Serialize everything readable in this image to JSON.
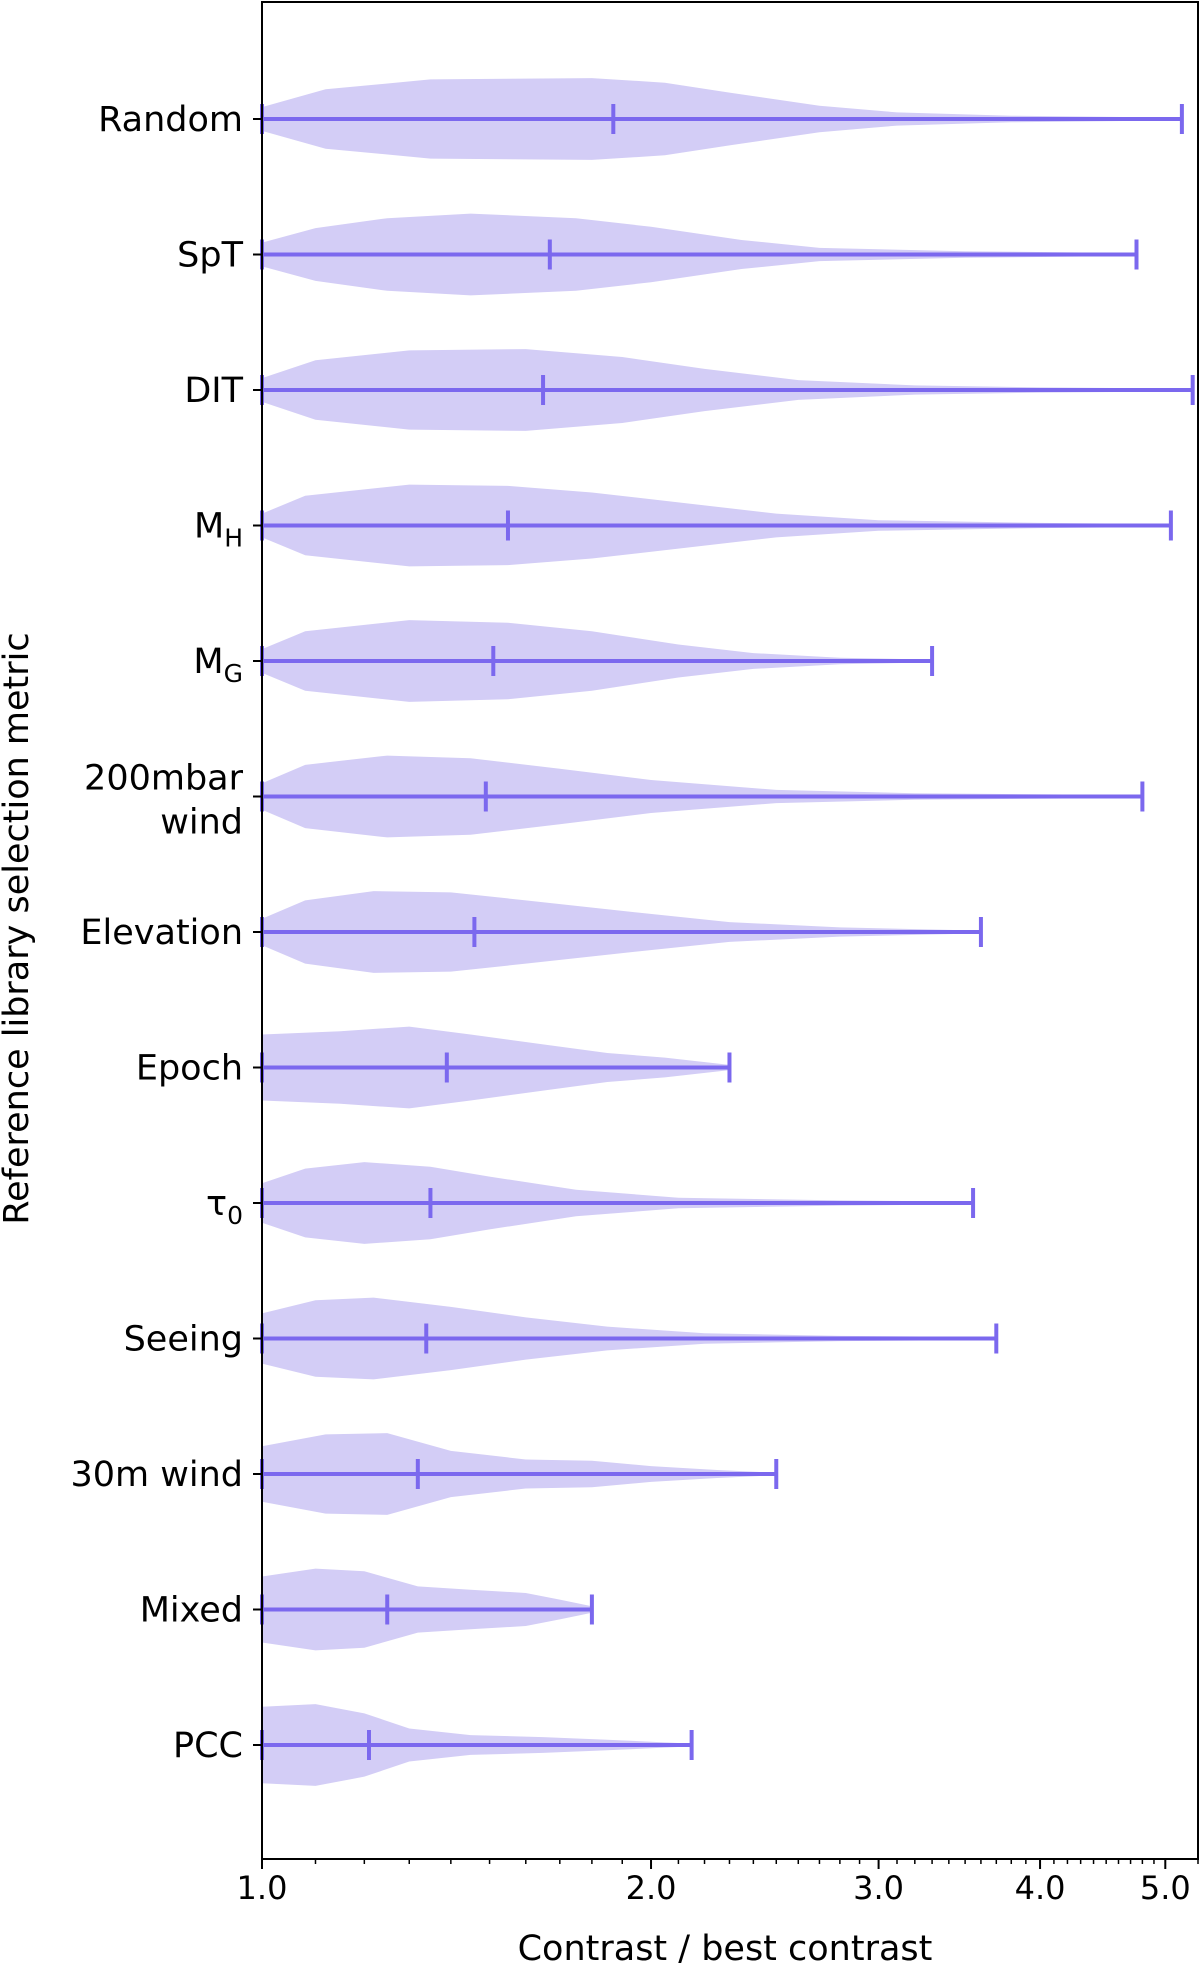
{
  "chart_data": {
    "type": "violin",
    "orientation": "horizontal",
    "xscale": "log",
    "xlabel": "Contrast / best contrast",
    "ylabel": "Reference library selection metric",
    "xlim": [
      1.0,
      5.3
    ],
    "xticks": [
      {
        "value": 1.0,
        "label": "1.0"
      },
      {
        "value": 2.0,
        "label": "2.0"
      },
      {
        "value": 3.0,
        "label": "3.0"
      },
      {
        "value": 4.0,
        "label": "4.0"
      },
      {
        "value": 5.0,
        "label": "5.0"
      }
    ],
    "colors": {
      "violin_fill": "#d3cdf6",
      "line": "#7b68ee"
    },
    "categories": [
      {
        "label": "Random",
        "sub": "",
        "min": 1.0,
        "median": 1.87,
        "max": 5.15,
        "density": [
          [
            1.0,
            0.18
          ],
          [
            1.12,
            0.45
          ],
          [
            1.35,
            0.6
          ],
          [
            1.8,
            0.62
          ],
          [
            2.05,
            0.55
          ],
          [
            2.3,
            0.4
          ],
          [
            2.7,
            0.2
          ],
          [
            3.1,
            0.1
          ],
          [
            3.8,
            0.05
          ],
          [
            5.15,
            0.02
          ]
        ]
      },
      {
        "label": "SpT",
        "sub": "",
        "min": 1.0,
        "median": 1.67,
        "max": 4.75,
        "density": [
          [
            1.0,
            0.18
          ],
          [
            1.1,
            0.4
          ],
          [
            1.25,
            0.55
          ],
          [
            1.45,
            0.62
          ],
          [
            1.75,
            0.55
          ],
          [
            2.0,
            0.42
          ],
          [
            2.35,
            0.22
          ],
          [
            2.7,
            0.1
          ],
          [
            3.5,
            0.05
          ],
          [
            4.75,
            0.02
          ]
        ]
      },
      {
        "label": "DIT",
        "sub": "",
        "min": 1.0,
        "median": 1.65,
        "max": 5.25,
        "density": [
          [
            1.0,
            0.18
          ],
          [
            1.1,
            0.45
          ],
          [
            1.3,
            0.6
          ],
          [
            1.6,
            0.62
          ],
          [
            1.9,
            0.5
          ],
          [
            2.2,
            0.32
          ],
          [
            2.6,
            0.15
          ],
          [
            3.2,
            0.07
          ],
          [
            4.0,
            0.04
          ],
          [
            5.25,
            0.02
          ]
        ]
      },
      {
        "label": "M",
        "sub": "H",
        "min": 1.0,
        "median": 1.55,
        "max": 5.05,
        "density": [
          [
            1.0,
            0.18
          ],
          [
            1.08,
            0.45
          ],
          [
            1.3,
            0.62
          ],
          [
            1.55,
            0.6
          ],
          [
            1.8,
            0.5
          ],
          [
            2.1,
            0.35
          ],
          [
            2.5,
            0.18
          ],
          [
            3.0,
            0.08
          ],
          [
            4.0,
            0.04
          ],
          [
            5.05,
            0.02
          ]
        ]
      },
      {
        "label": "M",
        "sub": "G",
        "min": 1.0,
        "median": 1.51,
        "max": 3.3,
        "density": [
          [
            1.0,
            0.18
          ],
          [
            1.08,
            0.45
          ],
          [
            1.3,
            0.62
          ],
          [
            1.55,
            0.58
          ],
          [
            1.8,
            0.45
          ],
          [
            2.1,
            0.25
          ],
          [
            2.4,
            0.12
          ],
          [
            2.8,
            0.05
          ],
          [
            3.3,
            0.02
          ]
        ]
      },
      {
        "label": "200mbar",
        "sub": "",
        "line2": "wind",
        "min": 1.0,
        "median": 1.49,
        "max": 4.8,
        "density": [
          [
            1.0,
            0.2
          ],
          [
            1.08,
            0.48
          ],
          [
            1.25,
            0.62
          ],
          [
            1.45,
            0.58
          ],
          [
            1.7,
            0.42
          ],
          [
            2.0,
            0.25
          ],
          [
            2.5,
            0.1
          ],
          [
            3.2,
            0.05
          ],
          [
            4.8,
            0.02
          ]
        ]
      },
      {
        "label": "Elevation",
        "sub": "",
        "min": 1.0,
        "median": 1.46,
        "max": 3.6,
        "density": [
          [
            1.0,
            0.2
          ],
          [
            1.08,
            0.48
          ],
          [
            1.22,
            0.62
          ],
          [
            1.4,
            0.6
          ],
          [
            1.6,
            0.48
          ],
          [
            1.9,
            0.32
          ],
          [
            2.3,
            0.15
          ],
          [
            2.8,
            0.07
          ],
          [
            3.6,
            0.02
          ]
        ]
      },
      {
        "label": "Epoch",
        "sub": "",
        "min": 1.0,
        "median": 1.39,
        "max": 2.3,
        "density": [
          [
            1.0,
            0.5
          ],
          [
            1.15,
            0.55
          ],
          [
            1.3,
            0.62
          ],
          [
            1.45,
            0.5
          ],
          [
            1.65,
            0.35
          ],
          [
            1.85,
            0.22
          ],
          [
            2.05,
            0.15
          ],
          [
            2.3,
            0.04
          ]
        ]
      },
      {
        "label": "τ",
        "sub": "0",
        "min": 1.0,
        "median": 1.35,
        "max": 3.55,
        "density": [
          [
            1.0,
            0.3
          ],
          [
            1.08,
            0.52
          ],
          [
            1.2,
            0.62
          ],
          [
            1.35,
            0.55
          ],
          [
            1.5,
            0.4
          ],
          [
            1.75,
            0.2
          ],
          [
            2.1,
            0.08
          ],
          [
            2.8,
            0.04
          ],
          [
            3.55,
            0.02
          ]
        ]
      },
      {
        "label": "Seeing",
        "sub": "",
        "min": 1.0,
        "median": 1.34,
        "max": 3.7,
        "density": [
          [
            1.0,
            0.38
          ],
          [
            1.1,
            0.58
          ],
          [
            1.22,
            0.62
          ],
          [
            1.4,
            0.48
          ],
          [
            1.6,
            0.32
          ],
          [
            1.85,
            0.18
          ],
          [
            2.2,
            0.08
          ],
          [
            2.8,
            0.04
          ],
          [
            3.7,
            0.02
          ]
        ]
      },
      {
        "label": "30m wind",
        "sub": "",
        "min": 1.0,
        "median": 1.32,
        "max": 2.5,
        "density": [
          [
            1.0,
            0.42
          ],
          [
            1.12,
            0.6
          ],
          [
            1.25,
            0.62
          ],
          [
            1.4,
            0.35
          ],
          [
            1.6,
            0.22
          ],
          [
            1.8,
            0.2
          ],
          [
            2.0,
            0.12
          ],
          [
            2.25,
            0.06
          ],
          [
            2.5,
            0.02
          ]
        ]
      },
      {
        "label": "Mixed",
        "sub": "",
        "min": 1.0,
        "median": 1.25,
        "max": 1.8,
        "density": [
          [
            1.0,
            0.5
          ],
          [
            1.1,
            0.62
          ],
          [
            1.2,
            0.58
          ],
          [
            1.32,
            0.35
          ],
          [
            1.45,
            0.3
          ],
          [
            1.6,
            0.25
          ],
          [
            1.7,
            0.15
          ],
          [
            1.8,
            0.05
          ]
        ]
      },
      {
        "label": "PCC",
        "sub": "",
        "min": 1.0,
        "median": 1.21,
        "max": 2.15,
        "density": [
          [
            1.0,
            0.58
          ],
          [
            1.1,
            0.62
          ],
          [
            1.2,
            0.48
          ],
          [
            1.3,
            0.25
          ],
          [
            1.45,
            0.15
          ],
          [
            1.65,
            0.12
          ],
          [
            1.85,
            0.08
          ],
          [
            2.0,
            0.05
          ],
          [
            2.15,
            0.02
          ]
        ]
      }
    ]
  }
}
